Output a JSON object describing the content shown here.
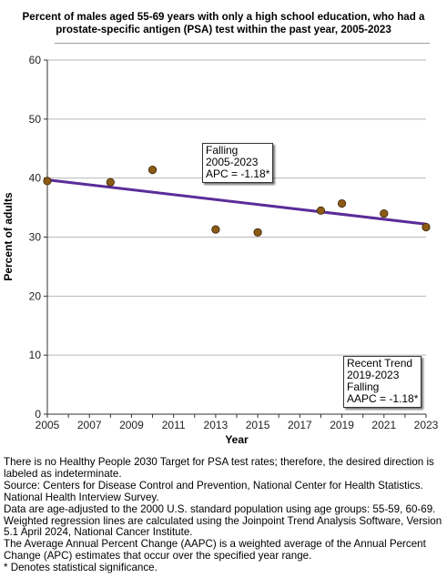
{
  "chart_data": {
    "type": "line",
    "title": "Percent of males aged 55-69 years with only a high school education, who had a prostate-specific antigen (PSA) test within the past year, 2005-2023",
    "xlabel": "Year",
    "ylabel": "Percent of adults",
    "xlim": [
      2005,
      2023
    ],
    "ylim": [
      0,
      60
    ],
    "x_ticks": [
      "2005",
      "2007",
      "2009",
      "2011",
      "2013",
      "2015",
      "2017",
      "2019",
      "2021",
      "2023"
    ],
    "y_ticks": [
      "0",
      "10",
      "20",
      "30",
      "40",
      "50",
      "60"
    ],
    "grid": "horizontal",
    "series": [
      {
        "type": "scatter",
        "color": "#8B5A14",
        "x": [
          2005,
          2008,
          2010,
          2013,
          2015,
          2018,
          2019,
          2021,
          2023
        ],
        "y": [
          39.5,
          39.3,
          41.4,
          31.3,
          30.8,
          34.5,
          35.7,
          34.0,
          31.7
        ]
      },
      {
        "type": "line",
        "color": "#5B2C99",
        "x": [
          2005,
          2023
        ],
        "y": [
          39.7,
          32.2
        ]
      }
    ],
    "annotations": [
      {
        "lines": [
          "Falling",
          "2005-2023",
          "APC = -1.18*"
        ]
      },
      {
        "lines": [
          "Recent Trend",
          "2019-2023",
          "Falling",
          "AAPC = -1.18*"
        ]
      }
    ]
  },
  "footnotes": [
    "There is no Healthy People 2030 Target for PSA test rates; therefore, the desired direction is labeled as indeterminate.",
    "Source: Centers for Disease Control and Prevention, National Center for Health Statistics. National Health Interview Survey.",
    "Data are age-adjusted to the 2000 U.S. standard population using age groups: 55-59, 60-69.",
    "Weighted regression lines are calculated using the Joinpoint Trend Analysis Software, Version 5.1 April 2024, National Cancer Institute.",
    "The Average Annual Percent Change (AAPC) is a weighted average of the Annual Percent Change (APC) estimates that occur over the specified year range.",
    "* Denotes statistical significance."
  ]
}
